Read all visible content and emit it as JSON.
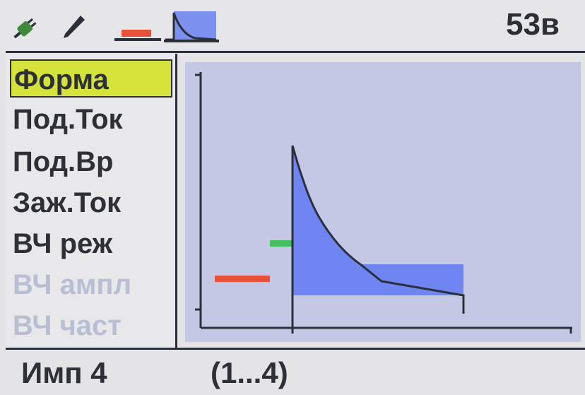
{
  "header": {
    "voltage": "53в",
    "icons": [
      "plug-icon",
      "electrode-icon",
      "pulse-rect-icon",
      "waveform-icon"
    ]
  },
  "menu": {
    "items": [
      {
        "label": "Форма",
        "state": "selected"
      },
      {
        "label": "Под.Ток",
        "state": "normal"
      },
      {
        "label": "Под.Вр",
        "state": "normal"
      },
      {
        "label": "Заж.Ток",
        "state": "normal"
      },
      {
        "label": "ВЧ реж",
        "state": "normal"
      },
      {
        "label": "ВЧ ампл",
        "state": "disabled"
      },
      {
        "label": "ВЧ част",
        "state": "disabled"
      }
    ]
  },
  "footer": {
    "value": "Имп 4",
    "range": "(1...4)"
  },
  "colors": {
    "selected_bg": "#d4e23a",
    "waveform_fill": "#6f86f2",
    "pre_current": "#e8503a",
    "ignition": "#44c060",
    "graph_bg": "#c4c8e4"
  }
}
